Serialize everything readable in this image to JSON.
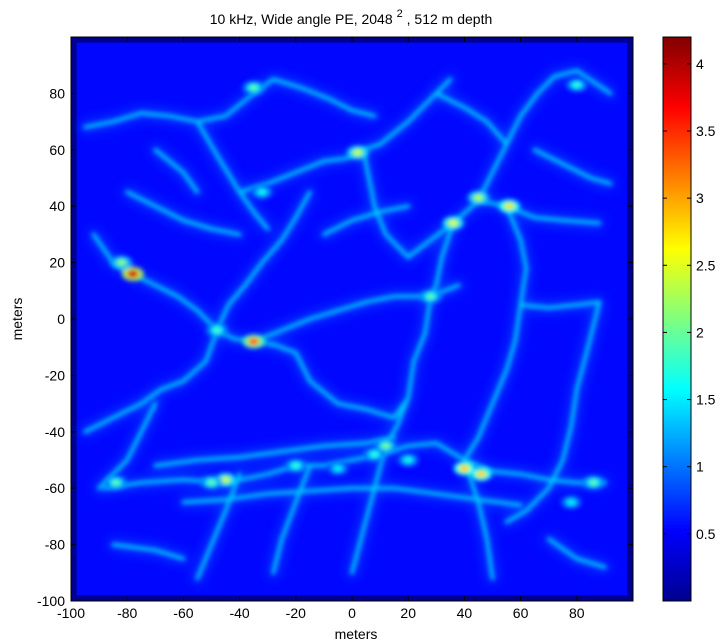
{
  "chart_data": {
    "type": "heatmap",
    "title": {
      "main": "10 kHz, Wide angle PE, 2048",
      "superscript": "2",
      "suffix": " , 512 m depth"
    },
    "xlabel": "meters",
    "ylabel": "meters",
    "xlim": [
      -100,
      100
    ],
    "ylim": [
      -100,
      100
    ],
    "xticks": [
      -100,
      -80,
      -60,
      -40,
      -20,
      0,
      20,
      40,
      60,
      80
    ],
    "yticks": [
      -100,
      -80,
      -60,
      -40,
      -20,
      0,
      20,
      40,
      60,
      80
    ],
    "colorbar": {
      "colormap": "jet",
      "min": 0,
      "max": 4.2,
      "ticks": [
        0.5,
        1,
        1.5,
        2,
        2.5,
        3,
        3.5,
        4
      ]
    },
    "grid": false,
    "field_extent": {
      "x": [
        -98,
        98
      ],
      "y": [
        -98,
        98
      ]
    },
    "background_level": 0.55,
    "caustics": [
      [
        [
          -95,
          68
        ],
        [
          -85,
          70
        ],
        [
          -75,
          73
        ],
        [
          -65,
          72
        ],
        [
          -55,
          70
        ],
        [
          -45,
          72
        ],
        [
          -35,
          80
        ],
        [
          -28,
          85
        ]
      ],
      [
        [
          -55,
          70
        ],
        [
          -48,
          58
        ],
        [
          -40,
          45
        ],
        [
          -35,
          38
        ],
        [
          -30,
          32
        ]
      ],
      [
        [
          -40,
          45
        ],
        [
          -30,
          48
        ],
        [
          -20,
          52
        ],
        [
          -10,
          56
        ],
        [
          -2,
          57
        ],
        [
          4,
          60
        ],
        [
          10,
          62
        ],
        [
          20,
          70
        ],
        [
          30,
          80
        ],
        [
          35,
          85
        ]
      ],
      [
        [
          -28,
          85
        ],
        [
          -18,
          82
        ],
        [
          -8,
          78
        ],
        [
          0,
          74
        ],
        [
          8,
          72
        ]
      ],
      [
        [
          4,
          60
        ],
        [
          6,
          50
        ],
        [
          8,
          40
        ],
        [
          12,
          30
        ],
        [
          20,
          22
        ]
      ],
      [
        [
          -85,
          20
        ],
        [
          -78,
          16
        ],
        [
          -70,
          12
        ],
        [
          -62,
          8
        ],
        [
          -55,
          3
        ],
        [
          -48,
          -4
        ],
        [
          -42,
          -7
        ],
        [
          -35,
          -8
        ],
        [
          -28,
          -9
        ],
        [
          -20,
          -12
        ]
      ],
      [
        [
          -48,
          -4
        ],
        [
          -44,
          5
        ],
        [
          -38,
          12
        ],
        [
          -32,
          20
        ],
        [
          -25,
          28
        ],
        [
          -20,
          36
        ],
        [
          -15,
          45
        ]
      ],
      [
        [
          -35,
          -8
        ],
        [
          -25,
          -4
        ],
        [
          -15,
          0
        ],
        [
          -5,
          3
        ],
        [
          5,
          6
        ],
        [
          15,
          8
        ],
        [
          28,
          8
        ],
        [
          38,
          12
        ]
      ],
      [
        [
          20,
          22
        ],
        [
          28,
          28
        ],
        [
          36,
          34
        ],
        [
          45,
          42
        ],
        [
          55,
          40
        ],
        [
          65,
          36
        ],
        [
          75,
          35
        ],
        [
          88,
          34
        ]
      ],
      [
        [
          45,
          42
        ],
        [
          50,
          52
        ],
        [
          55,
          62
        ],
        [
          60,
          72
        ],
        [
          66,
          80
        ],
        [
          72,
          86
        ]
      ],
      [
        [
          30,
          80
        ],
        [
          40,
          75
        ],
        [
          48,
          70
        ],
        [
          55,
          62
        ]
      ],
      [
        [
          72,
          86
        ],
        [
          80,
          88
        ],
        [
          86,
          84
        ],
        [
          92,
          80
        ]
      ],
      [
        [
          36,
          34
        ],
        [
          32,
          22
        ],
        [
          30,
          12
        ],
        [
          28,
          8
        ],
        [
          26,
          -5
        ],
        [
          22,
          -15
        ],
        [
          20,
          -28
        ],
        [
          16,
          -38
        ],
        [
          12,
          -45
        ]
      ],
      [
        [
          55,
          40
        ],
        [
          60,
          28
        ],
        [
          62,
          18
        ],
        [
          60,
          5
        ],
        [
          58,
          -8
        ],
        [
          55,
          -18
        ],
        [
          50,
          -30
        ],
        [
          45,
          -42
        ],
        [
          40,
          -50
        ]
      ],
      [
        [
          60,
          5
        ],
        [
          70,
          4
        ],
        [
          80,
          5
        ],
        [
          88,
          6
        ]
      ],
      [
        [
          88,
          6
        ],
        [
          84,
          -10
        ],
        [
          80,
          -25
        ],
        [
          78,
          -38
        ],
        [
          75,
          -50
        ],
        [
          70,
          -60
        ],
        [
          62,
          -68
        ],
        [
          55,
          -72
        ]
      ],
      [
        [
          -95,
          -40
        ],
        [
          -85,
          -35
        ],
        [
          -75,
          -30
        ],
        [
          -68,
          -25
        ],
        [
          -60,
          -22
        ]
      ],
      [
        [
          -90,
          -60
        ],
        [
          -85,
          -55
        ],
        [
          -80,
          -50
        ],
        [
          -75,
          -40
        ],
        [
          -70,
          -30
        ]
      ],
      [
        [
          -88,
          -60
        ],
        [
          -75,
          -58
        ],
        [
          -60,
          -57
        ],
        [
          -45,
          -58
        ],
        [
          -30,
          -55
        ],
        [
          -20,
          -52
        ],
        [
          -10,
          -52
        ],
        [
          0,
          -50
        ],
        [
          10,
          -48
        ],
        [
          20,
          -45
        ],
        [
          30,
          -44
        ],
        [
          40,
          -50
        ],
        [
          50,
          -54
        ],
        [
          60,
          -55
        ],
        [
          70,
          -57
        ],
        [
          80,
          -58
        ],
        [
          90,
          -58
        ]
      ],
      [
        [
          -70,
          -52
        ],
        [
          -55,
          -50
        ],
        [
          -40,
          -49
        ],
        [
          -25,
          -47
        ],
        [
          -10,
          -45
        ],
        [
          5,
          -44
        ],
        [
          15,
          -42
        ]
      ],
      [
        [
          -60,
          -65
        ],
        [
          -45,
          -64
        ],
        [
          -30,
          -62
        ],
        [
          -15,
          -61
        ],
        [
          0,
          -60
        ],
        [
          15,
          -60
        ],
        [
          30,
          -62
        ],
        [
          45,
          -64
        ],
        [
          60,
          -66
        ]
      ],
      [
        [
          12,
          -45
        ],
        [
          8,
          -60
        ],
        [
          4,
          -75
        ],
        [
          0,
          -90
        ]
      ],
      [
        [
          -40,
          -55
        ],
        [
          -45,
          -68
        ],
        [
          -50,
          -80
        ],
        [
          -55,
          -92
        ]
      ],
      [
        [
          -15,
          -52
        ],
        [
          -20,
          -65
        ],
        [
          -25,
          -78
        ],
        [
          -28,
          -90
        ]
      ],
      [
        [
          40,
          -50
        ],
        [
          45,
          -65
        ],
        [
          48,
          -78
        ],
        [
          50,
          -92
        ]
      ],
      [
        [
          -20,
          -12
        ],
        [
          -15,
          -22
        ],
        [
          -5,
          -30
        ],
        [
          5,
          -32
        ],
        [
          15,
          -35
        ],
        [
          20,
          -28
        ]
      ],
      [
        [
          -60,
          -22
        ],
        [
          -52,
          -15
        ],
        [
          -48,
          -4
        ]
      ],
      [
        [
          -80,
          45
        ],
        [
          -70,
          40
        ],
        [
          -60,
          35
        ],
        [
          -50,
          32
        ],
        [
          -40,
          30
        ]
      ],
      [
        [
          -92,
          30
        ],
        [
          -85,
          20
        ]
      ],
      [
        [
          -10,
          30
        ],
        [
          0,
          35
        ],
        [
          10,
          38
        ],
        [
          20,
          40
        ]
      ],
      [
        [
          -70,
          60
        ],
        [
          -60,
          52
        ],
        [
          -55,
          45
        ]
      ],
      [
        [
          65,
          60
        ],
        [
          75,
          55
        ],
        [
          85,
          50
        ],
        [
          92,
          48
        ]
      ],
      [
        [
          -85,
          -80
        ],
        [
          -70,
          -82
        ],
        [
          -60,
          -85
        ]
      ],
      [
        [
          70,
          -78
        ],
        [
          80,
          -85
        ],
        [
          90,
          -88
        ]
      ]
    ],
    "hotspots": [
      {
        "x": -78,
        "y": 16,
        "value": 4.2
      },
      {
        "x": -82,
        "y": 20,
        "value": 2.2
      },
      {
        "x": -35,
        "y": -8,
        "value": 3.6
      },
      {
        "x": -48,
        "y": -4,
        "value": 1.9
      },
      {
        "x": 2,
        "y": 59,
        "value": 2.5
      },
      {
        "x": -35,
        "y": 82,
        "value": 2.0
      },
      {
        "x": -32,
        "y": 45,
        "value": 1.7
      },
      {
        "x": 36,
        "y": 34,
        "value": 2.6
      },
      {
        "x": 45,
        "y": 43,
        "value": 2.4
      },
      {
        "x": 56,
        "y": 40,
        "value": 2.8
      },
      {
        "x": 28,
        "y": 8,
        "value": 2.0
      },
      {
        "x": 40,
        "y": -53,
        "value": 3.0
      },
      {
        "x": 46,
        "y": -55,
        "value": 2.9
      },
      {
        "x": 12,
        "y": -45,
        "value": 2.1
      },
      {
        "x": 8,
        "y": -48,
        "value": 1.8
      },
      {
        "x": -45,
        "y": -57,
        "value": 2.5
      },
      {
        "x": -50,
        "y": -58,
        "value": 2.0
      },
      {
        "x": -84,
        "y": -58,
        "value": 2.0
      },
      {
        "x": -20,
        "y": -52,
        "value": 1.8
      },
      {
        "x": 86,
        "y": -58,
        "value": 2.0
      },
      {
        "x": 78,
        "y": -65,
        "value": 1.6
      },
      {
        "x": 80,
        "y": 83,
        "value": 1.8
      },
      {
        "x": -5,
        "y": -53,
        "value": 1.6
      },
      {
        "x": 20,
        "y": -50,
        "value": 1.7
      }
    ]
  }
}
